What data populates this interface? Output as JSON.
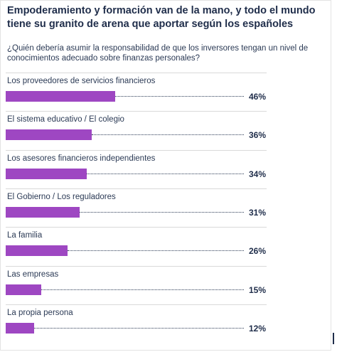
{
  "title": "Empoderamiento y formación van de la mano, y todo el mundo tiene su granito de arena que aportar según los españoles",
  "subtitle": "¿Quién debería asumir la responsabilidad de que los inversores tengan un nivel de conocimientos adecuado sobre finanzas personales?",
  "chart_data": {
    "type": "bar",
    "orientation": "horizontal",
    "title": "Empoderamiento y formación van de la mano, y todo el mundo tiene su granito de arena que aportar según los españoles",
    "subtitle": "¿Quién debería asumir la responsabilidad de que los inversores tengan un nivel de conocimientos adecuado sobre finanzas personales?",
    "categories": [
      "Los proveedores de servicios financieros",
      "El sistema educativo / El colegio",
      "Los asesores financieros independientes",
      "El Gobierno / Los reguladores",
      "La familia",
      "Las empresas",
      "La propia persona"
    ],
    "values": [
      46,
      36,
      34,
      31,
      26,
      15,
      12
    ],
    "value_labels": [
      "46%",
      "36%",
      "34%",
      "31%",
      "26%",
      "15%",
      "12%"
    ],
    "unit": "%",
    "bar_color": "#9e47c2",
    "xlim": [
      0,
      100
    ],
    "grid": false
  }
}
